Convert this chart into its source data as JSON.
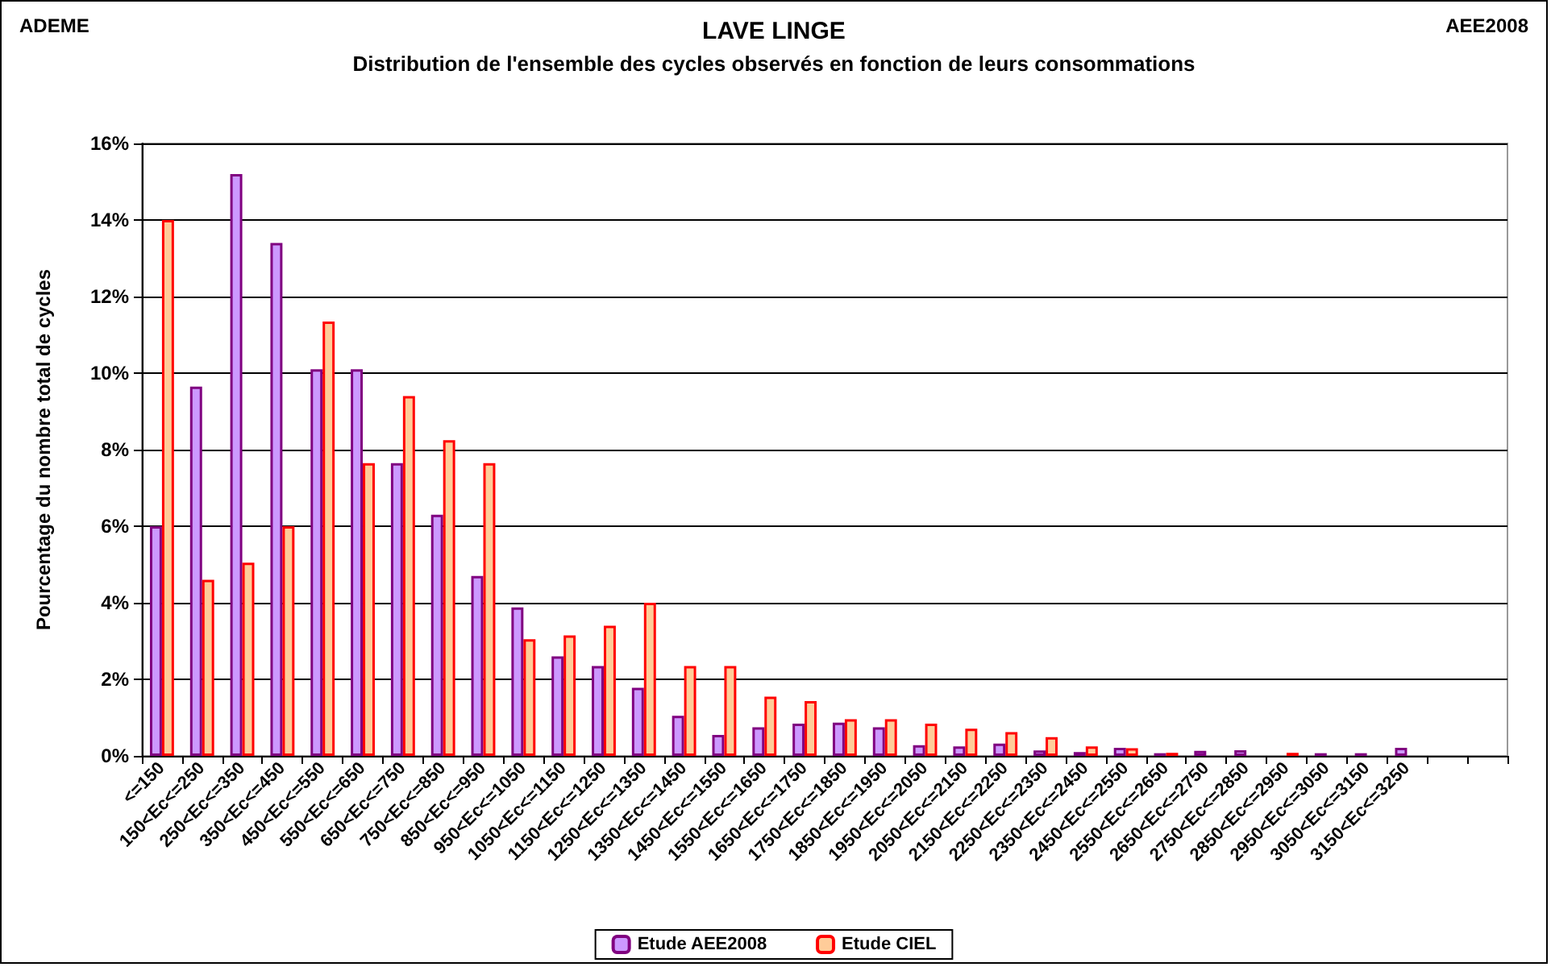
{
  "chart_data": {
    "type": "bar",
    "title": "LAVE LINGE",
    "subtitle": "Distribution de l'ensemble des cycles observés en fonction de leurs consommations",
    "ylabel": "Pourcentage du nombre total de cycles",
    "annotations": [
      "ADEME",
      "AEE2008"
    ],
    "categories": [
      "<=150",
      "150<Ec<=250",
      "250<Ec<=350",
      "350<Ec<=450",
      "450<Ec<=550",
      "550<Ec<=650",
      "650<Ec<=750",
      "750<Ec<=850",
      "850<Ec<=950",
      "950<Ec<=1050",
      "1050<Ec<=1150",
      "1150<Ec<=1250",
      "1250<Ec<=1350",
      "1350<Ec<=1450",
      "1450<Ec<=1550",
      "1550<Ec<=1650",
      "1650<Ec<=1750",
      "1750<Ec<=1850",
      "1850<Ec<=1950",
      "1950<Ec<=2050",
      "2050<Ec<=2150",
      "2150<Ec<=2250",
      "2250<Ec<=2350",
      "2350<Ec<=2450",
      "2450<Ec<=2550",
      "2550<Ec<=2650",
      "2650<Ec<=2750",
      "2750<Ec<=2850",
      "2850<Ec<=2950",
      "2950<Ec<=3050",
      "3050<Ec<=3150",
      "3150<Ec<=3250",
      null,
      null
    ],
    "series": [
      {
        "name": "Etude AEE2008",
        "color": "#cc99ff",
        "values": [
          6.0,
          9.65,
          15.2,
          13.4,
          10.1,
          10.1,
          7.65,
          6.3,
          4.7,
          3.88,
          2.6,
          2.35,
          1.78,
          1.05,
          0.55,
          0.75,
          0.84,
          0.87,
          0.75,
          0.28,
          0.25,
          0.32,
          0.14,
          0.1,
          0.21,
          0.07,
          0.13,
          0.15,
          0,
          0.07,
          0.07,
          0.21,
          null,
          null
        ]
      },
      {
        "name": "Etude CIEL",
        "color": "#ffcc99",
        "values": [
          14.0,
          4.6,
          5.05,
          6.0,
          11.35,
          7.65,
          9.4,
          8.25,
          7.65,
          3.05,
          3.15,
          3.4,
          4.0,
          2.35,
          2.35,
          1.55,
          1.43,
          0.96,
          0.96,
          0.84,
          0.71,
          0.62,
          0.49,
          0.25,
          0.2,
          0.08,
          0,
          0,
          0.08,
          0,
          0,
          0,
          null,
          null
        ]
      }
    ],
    "ylim": [
      0,
      16
    ],
    "yticks": [
      {
        "value": 0,
        "label": "0%"
      },
      {
        "value": 2,
        "label": "2%"
      },
      {
        "value": 4,
        "label": "4%"
      },
      {
        "value": 6,
        "label": "6%"
      },
      {
        "value": 8,
        "label": "8%"
      },
      {
        "value": 10,
        "label": "10%"
      },
      {
        "value": 12,
        "label": "12%"
      },
      {
        "value": 14,
        "label": "14%"
      },
      {
        "value": 16,
        "label": "16%"
      }
    ],
    "grid": "y",
    "legend": "bottom"
  }
}
